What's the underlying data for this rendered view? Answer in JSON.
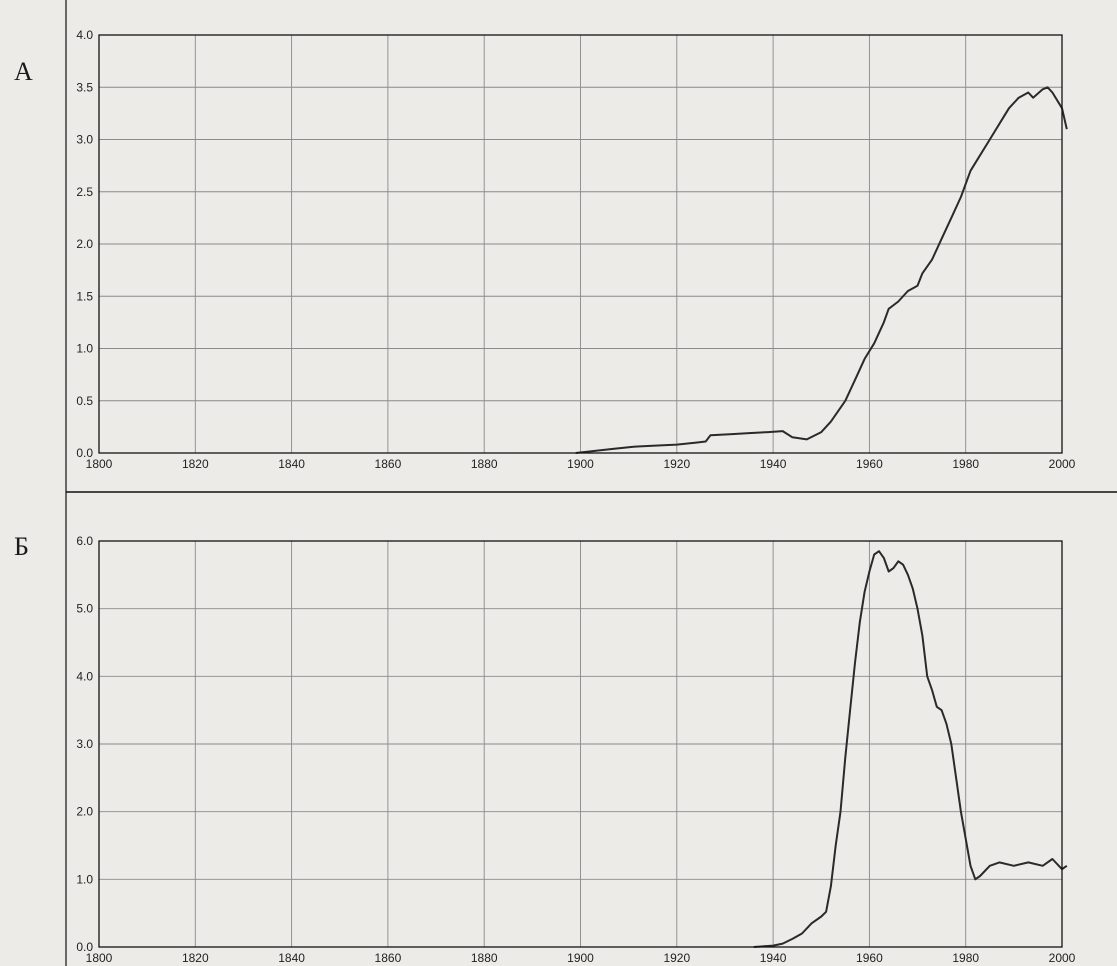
{
  "chart_data": [
    {
      "type": "line",
      "panel_label": "А",
      "xlim": [
        1800,
        2000
      ],
      "ylim": [
        0,
        4.0
      ],
      "x_ticks": [
        "1800",
        "1820",
        "1840",
        "1860",
        "1880",
        "1900",
        "1920",
        "1940",
        "1960",
        "1980",
        "2000"
      ],
      "y_ticks": [
        "0.0",
        "0.5",
        "1.0",
        "1.5",
        "2.0",
        "2.5",
        "3.0",
        "3.5",
        "4.0"
      ],
      "grid": true,
      "series": [
        {
          "points": [
            [
              1899,
              0.0
            ],
            [
              1903,
              0.02
            ],
            [
              1907,
              0.04
            ],
            [
              1911,
              0.06
            ],
            [
              1915,
              0.07
            ],
            [
              1920,
              0.08
            ],
            [
              1924,
              0.1
            ],
            [
              1926,
              0.11
            ],
            [
              1927,
              0.17
            ],
            [
              1931,
              0.18
            ],
            [
              1935,
              0.19
            ],
            [
              1939,
              0.2
            ],
            [
              1942,
              0.21
            ],
            [
              1944,
              0.15
            ],
            [
              1947,
              0.13
            ],
            [
              1950,
              0.2
            ],
            [
              1952,
              0.3
            ],
            [
              1955,
              0.5
            ],
            [
              1957,
              0.7
            ],
            [
              1959,
              0.9
            ],
            [
              1961,
              1.05
            ],
            [
              1963,
              1.25
            ],
            [
              1964,
              1.38
            ],
            [
              1966,
              1.45
            ],
            [
              1968,
              1.55
            ],
            [
              1970,
              1.6
            ],
            [
              1971,
              1.72
            ],
            [
              1973,
              1.85
            ],
            [
              1975,
              2.05
            ],
            [
              1977,
              2.25
            ],
            [
              1979,
              2.45
            ],
            [
              1981,
              2.7
            ],
            [
              1983,
              2.85
            ],
            [
              1985,
              3.0
            ],
            [
              1987,
              3.15
            ],
            [
              1989,
              3.3
            ],
            [
              1991,
              3.4
            ],
            [
              1993,
              3.45
            ],
            [
              1994,
              3.4
            ],
            [
              1996,
              3.48
            ],
            [
              1997,
              3.5
            ],
            [
              1998,
              3.45
            ],
            [
              2000,
              3.3
            ],
            [
              2001,
              3.1
            ]
          ]
        }
      ]
    },
    {
      "type": "line",
      "panel_label": "Б",
      "xlim": [
        1800,
        2000
      ],
      "ylim": [
        0,
        6.0
      ],
      "x_ticks": [
        "1800",
        "1820",
        "1840",
        "1860",
        "1880",
        "1900",
        "1920",
        "1940",
        "1960",
        "1980",
        "2000"
      ],
      "y_ticks": [
        "0.0",
        "1.0",
        "2.0",
        "3.0",
        "4.0",
        "5.0",
        "6.0"
      ],
      "grid": true,
      "series": [
        {
          "points": [
            [
              1936,
              0.0
            ],
            [
              1940,
              0.02
            ],
            [
              1942,
              0.05
            ],
            [
              1944,
              0.12
            ],
            [
              1946,
              0.2
            ],
            [
              1948,
              0.35
            ],
            [
              1950,
              0.45
            ],
            [
              1951,
              0.52
            ],
            [
              1952,
              0.9
            ],
            [
              1953,
              1.5
            ],
            [
              1954,
              2.0
            ],
            [
              1955,
              2.8
            ],
            [
              1956,
              3.5
            ],
            [
              1957,
              4.2
            ],
            [
              1958,
              4.8
            ],
            [
              1959,
              5.25
            ],
            [
              1960,
              5.55
            ],
            [
              1961,
              5.8
            ],
            [
              1962,
              5.85
            ],
            [
              1963,
              5.75
            ],
            [
              1964,
              5.55
            ],
            [
              1965,
              5.6
            ],
            [
              1966,
              5.7
            ],
            [
              1967,
              5.65
            ],
            [
              1968,
              5.5
            ],
            [
              1969,
              5.3
            ],
            [
              1970,
              5.0
            ],
            [
              1971,
              4.6
            ],
            [
              1972,
              4.0
            ],
            [
              1973,
              3.8
            ],
            [
              1974,
              3.55
            ],
            [
              1975,
              3.5
            ],
            [
              1976,
              3.3
            ],
            [
              1977,
              3.0
            ],
            [
              1978,
              2.5
            ],
            [
              1979,
              2.0
            ],
            [
              1980,
              1.6
            ],
            [
              1981,
              1.2
            ],
            [
              1982,
              1.0
            ],
            [
              1983,
              1.05
            ],
            [
              1985,
              1.2
            ],
            [
              1987,
              1.25
            ],
            [
              1990,
              1.2
            ],
            [
              1993,
              1.25
            ],
            [
              1996,
              1.2
            ],
            [
              1998,
              1.3
            ],
            [
              2000,
              1.15
            ],
            [
              2001,
              1.2
            ]
          ]
        }
      ]
    }
  ]
}
